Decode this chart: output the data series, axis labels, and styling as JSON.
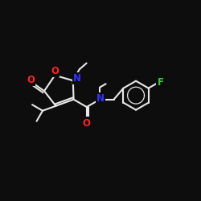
{
  "bg_color": "#0d0d0d",
  "bond_color": "#e8e8e8",
  "atom_colors": {
    "O": "#ff2222",
    "N": "#3333ff",
    "F": "#33cc33",
    "C": "#e8e8e8"
  },
  "bond_width": 1.5,
  "font_size_atom": 8.5
}
